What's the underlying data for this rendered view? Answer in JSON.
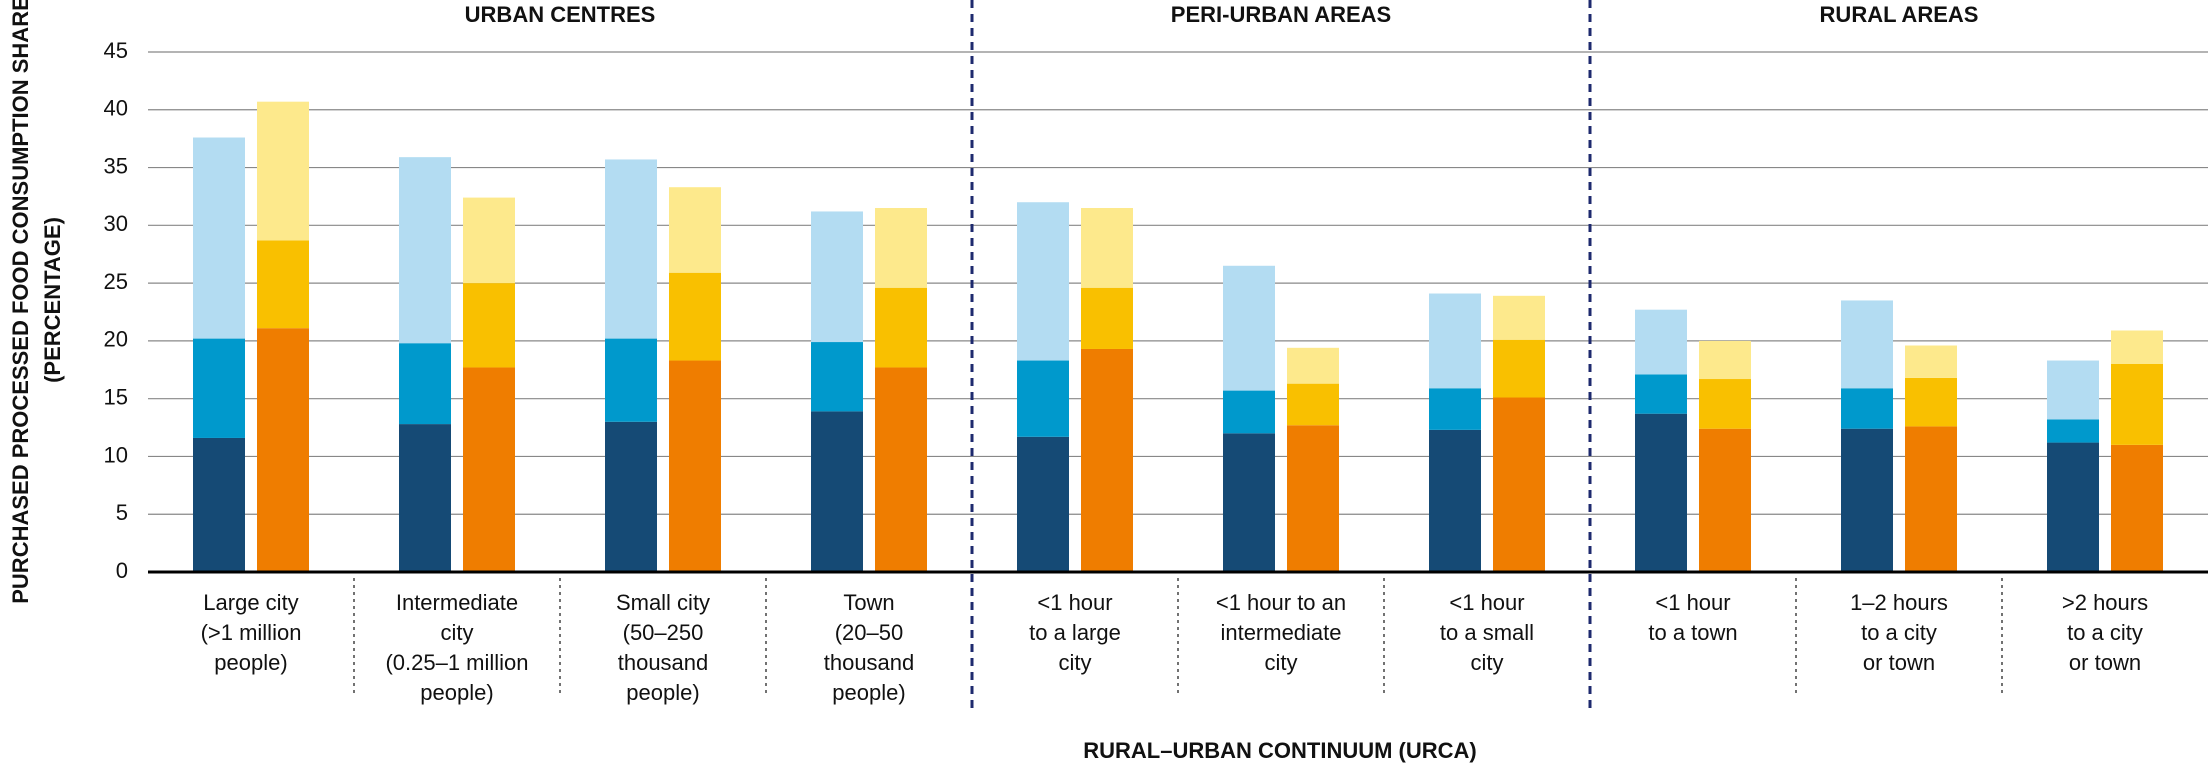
{
  "chart_data": {
    "type": "stacked_bar",
    "y_label": [
      "PURCHASED PROCESSED FOOD CONSUMPTION SHARE",
      "(PERCENTAGE)"
    ],
    "x_label": "RURAL–URBAN CONTINUUM (URCA)",
    "groups": [
      {
        "label": "URBAN CENTRES",
        "span": 4
      },
      {
        "label": "PERI-URBAN AREAS",
        "span": 3
      },
      {
        "label": "RURAL AREAS",
        "span": 3
      }
    ],
    "categories": [
      [
        "Large city",
        "(>1 million",
        "people)"
      ],
      [
        "Intermediate",
        "city",
        "(0.25–1 million",
        "people)"
      ],
      [
        "Small city",
        "(50–250",
        "thousand",
        "people)"
      ],
      [
        "Town",
        "(20–50",
        "thousand",
        "people)"
      ],
      [
        "<1 hour",
        "to a large",
        "city"
      ],
      [
        "<1 hour to an",
        "intermediate",
        "city"
      ],
      [
        "<1 hour",
        "to a small",
        "city"
      ],
      [
        "<1 hour",
        "to a town"
      ],
      [
        "1–2 hours",
        "to a city",
        "or town"
      ],
      [
        ">2 hours",
        "to a city",
        "or town"
      ]
    ],
    "series": [
      [
        {
          "color": "#154a75",
          "values": [
            11.6,
            12.8,
            13.0,
            13.9,
            11.7,
            12.0,
            12.3,
            13.7,
            12.4,
            11.2
          ]
        },
        {
          "color": "#0099cc",
          "values": [
            8.6,
            7.0,
            7.2,
            6.0,
            6.6,
            3.7,
            3.6,
            3.4,
            3.5,
            2.0
          ]
        },
        {
          "color": "#b3dcf2",
          "values": [
            17.4,
            16.1,
            15.5,
            11.3,
            13.7,
            10.8,
            8.2,
            5.6,
            7.6,
            5.1
          ]
        }
      ],
      [
        {
          "color": "#ef7d00",
          "values": [
            21.1,
            17.7,
            18.3,
            17.7,
            19.3,
            12.7,
            15.1,
            12.4,
            12.6,
            11.0
          ]
        },
        {
          "color": "#f9c000",
          "values": [
            7.6,
            7.3,
            7.6,
            6.9,
            5.3,
            3.6,
            5.0,
            4.3,
            4.2,
            7.0
          ]
        },
        {
          "color": "#fde98c",
          "values": [
            12.0,
            7.4,
            7.4,
            6.9,
            6.9,
            3.1,
            3.8,
            3.3,
            2.8,
            2.9
          ]
        }
      ]
    ],
    "ylim": [
      0,
      45
    ],
    "yticks": [
      0,
      5,
      10,
      15,
      20,
      25,
      30,
      35,
      40,
      45
    ],
    "grid": true
  }
}
